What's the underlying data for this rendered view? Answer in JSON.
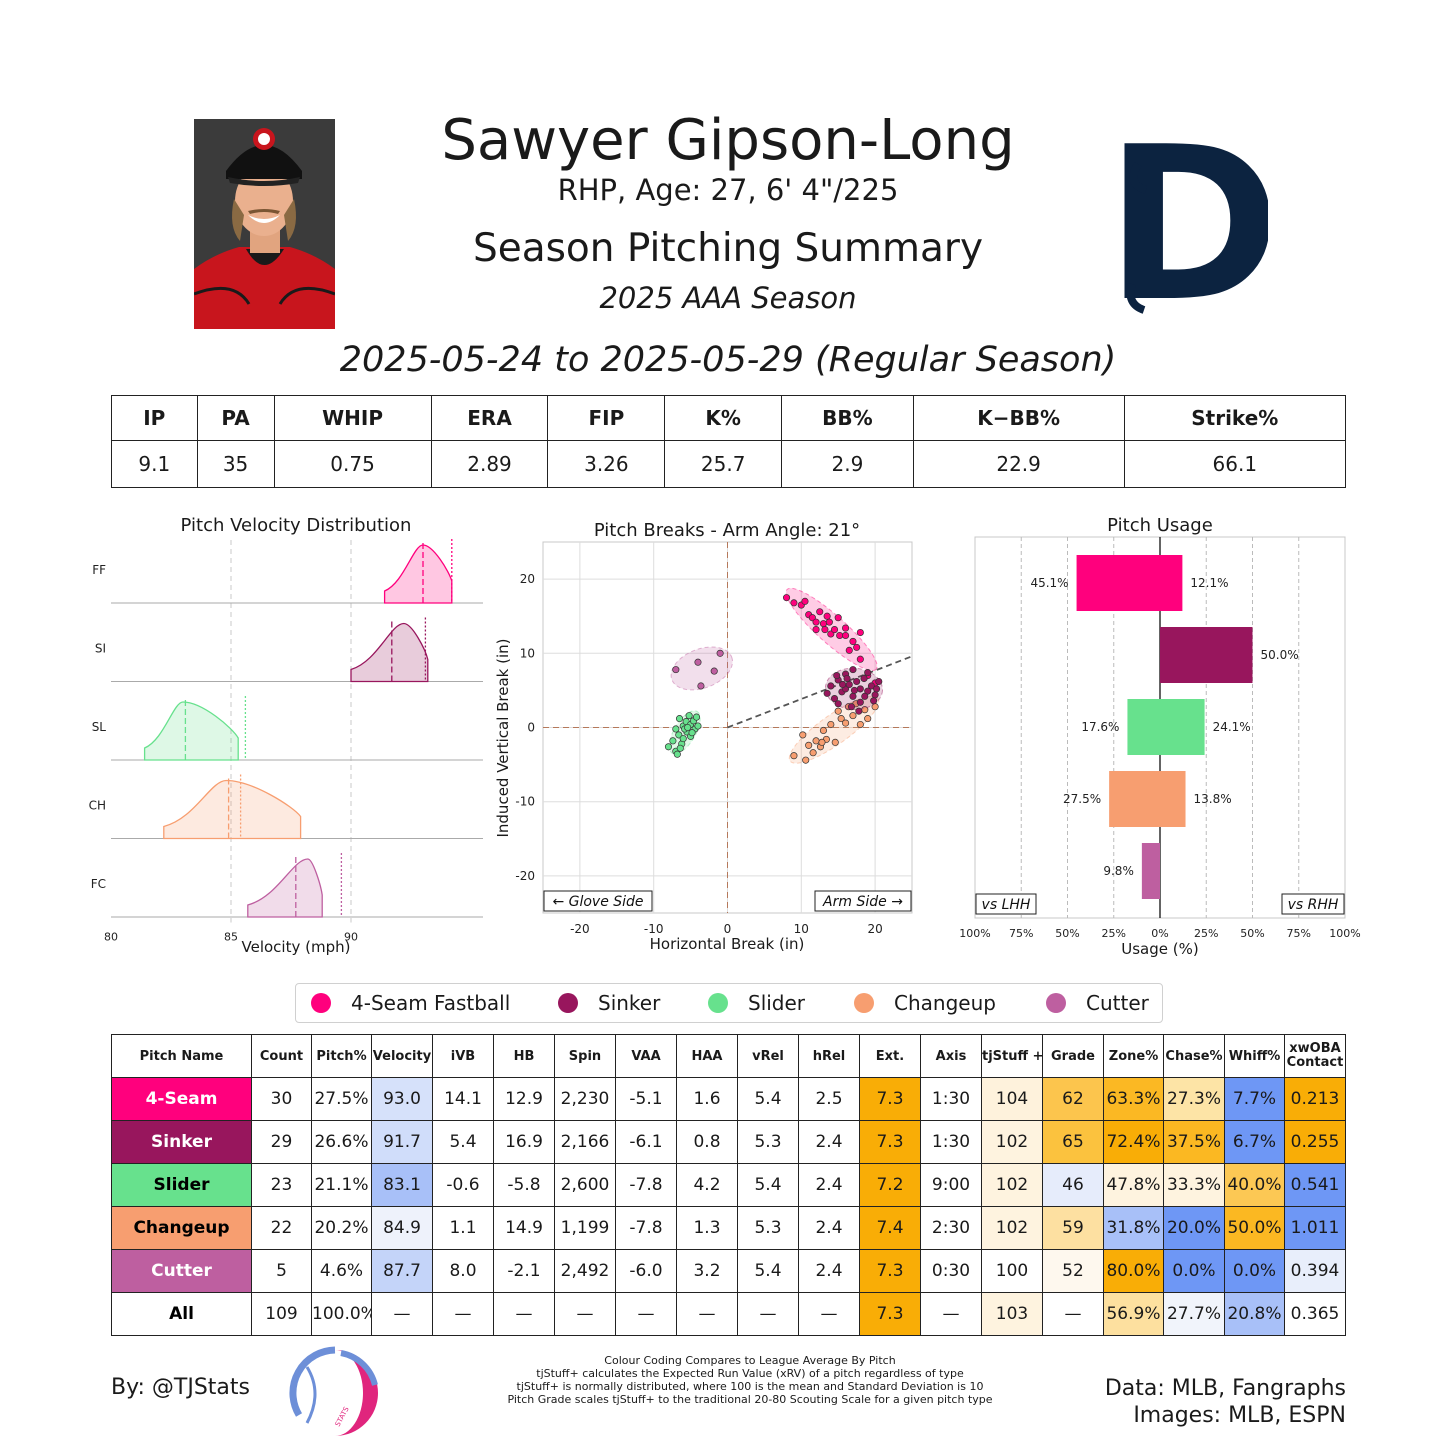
{
  "header": {
    "player_name": "Sawyer Gipson-Long",
    "bio": "RHP, Age: 27, 6' 4\"/225",
    "summary_title": "Season Pitching Summary",
    "season": "2025 AAA Season",
    "date_range": "2025-05-24 to 2025-05-29 (Regular Season)"
  },
  "season_stats": {
    "headers": [
      "IP",
      "PA",
      "WHIP",
      "ERA",
      "FIP",
      "K%",
      "BB%",
      "K−BB%",
      "Strike%"
    ],
    "values": [
      "9.1",
      "35",
      "0.75",
      "2.89",
      "3.26",
      "25.7",
      "2.9",
      "22.9",
      "66.1"
    ]
  },
  "pitch_types": [
    {
      "code": "FF",
      "name": "4-Seam Fastball",
      "color": "#FF007D"
    },
    {
      "code": "SI",
      "name": "Sinker",
      "color": "#98165D"
    },
    {
      "code": "SL",
      "name": "Slider",
      "color": "#67E18D"
    },
    {
      "code": "CH",
      "name": "Changeup",
      "color": "#F79E70"
    },
    {
      "code": "FC",
      "name": "Cutter",
      "color": "#BE5FA0"
    }
  ],
  "chart_data": [
    {
      "type": "area",
      "title": "Pitch Velocity Distribution",
      "xlabel": "Velocity (mph)",
      "xlim": [
        80,
        95.5
      ],
      "xticks": [
        80,
        85,
        90
      ],
      "gridlines": [
        85,
        90
      ],
      "series": [
        {
          "code": "FF",
          "min": 91.4,
          "max": 94.2,
          "peak": 93.0,
          "mean": 93.0,
          "league_avg": 94.2
        },
        {
          "code": "SI",
          "min": 90.0,
          "max": 93.2,
          "peak": 92.2,
          "mean": 91.7,
          "league_avg": 93.1
        },
        {
          "code": "SL",
          "min": 81.4,
          "max": 85.3,
          "peak": 83.0,
          "mean": 83.1,
          "league_avg": 85.6
        },
        {
          "code": "CH",
          "min": 82.2,
          "max": 87.9,
          "peak": 84.8,
          "mean": 84.9,
          "league_avg": 85.4
        },
        {
          "code": "FC",
          "min": 85.7,
          "max": 88.8,
          "peak": 88.2,
          "mean": 87.7,
          "league_avg": 89.6
        }
      ]
    },
    {
      "type": "scatter",
      "title": "Pitch Breaks - Arm Angle: 21°",
      "xlabel": "Horizontal Break (in)",
      "ylabel": "Induced Vertical Break (in)",
      "xlim": [
        -25,
        25
      ],
      "ylim": [
        -25,
        25
      ],
      "xticks": [
        -20,
        -10,
        0,
        10,
        20
      ],
      "yticks": [
        20,
        10,
        0,
        -10,
        -20
      ],
      "arm_angle_deg": 21,
      "glove_side_label": "← Glove Side",
      "arm_side_label": "Arm Side →",
      "points": {
        "FF": [
          [
            8,
            17.5
          ],
          [
            9,
            16.8
          ],
          [
            10,
            16.5
          ],
          [
            11,
            15.2
          ],
          [
            11.5,
            14.8
          ],
          [
            12,
            14.2
          ],
          [
            12.5,
            15.6
          ],
          [
            13,
            14
          ],
          [
            13.2,
            13.2
          ],
          [
            13.8,
            14.2
          ],
          [
            14,
            12.6
          ],
          [
            14.5,
            13.2
          ],
          [
            15,
            14.8
          ],
          [
            15.2,
            12.4
          ],
          [
            16,
            13.4
          ],
          [
            16,
            12.4
          ],
          [
            17,
            11.6
          ],
          [
            18,
            12.8
          ],
          [
            12,
            13.2
          ],
          [
            16.5,
            10.4
          ],
          [
            18,
            9.2
          ],
          [
            19,
            7
          ],
          [
            20,
            6
          ],
          [
            13.5,
            15
          ],
          [
            17.5,
            10.8
          ],
          [
            10.5,
            17
          ]
        ],
        "SI": [
          [
            13.5,
            4.6
          ],
          [
            14,
            5.6
          ],
          [
            14.5,
            3.9
          ],
          [
            15,
            6.4
          ],
          [
            15.5,
            4.8
          ],
          [
            16,
            7.2
          ],
          [
            16,
            5.2
          ],
          [
            16.5,
            5.8
          ],
          [
            17,
            4.2
          ],
          [
            17,
            7.8
          ],
          [
            17.5,
            6.2
          ],
          [
            18,
            5.2
          ],
          [
            18,
            3.4
          ],
          [
            18.5,
            6.6
          ],
          [
            19,
            4.9
          ],
          [
            19,
            7.4
          ],
          [
            19.5,
            5.6
          ],
          [
            20,
            4.4
          ],
          [
            20.5,
            6.2
          ],
          [
            15,
            3.2
          ],
          [
            16.8,
            2.8
          ],
          [
            19.8,
            3.6
          ],
          [
            14.8,
            7
          ],
          [
            17.8,
            2.2
          ],
          [
            20.2,
            5.2
          ],
          [
            16.2,
            6.6
          ],
          [
            18.6,
            4.2
          ],
          [
            15.6,
            5.8
          ],
          [
            17.2,
            5
          ]
        ],
        "SL": [
          [
            -8,
            -2.6
          ],
          [
            -7.4,
            -1.8
          ],
          [
            -7,
            -3.2
          ],
          [
            -7,
            -0.2
          ],
          [
            -6.6,
            -1
          ],
          [
            -6.5,
            1.2
          ],
          [
            -6.2,
            -2.2
          ],
          [
            -6,
            0.2
          ],
          [
            -6,
            -1.5
          ],
          [
            -5.6,
            0.8
          ],
          [
            -5.5,
            -0.6
          ],
          [
            -5.2,
            1.6
          ],
          [
            -5,
            0.4
          ],
          [
            -5,
            -1.2
          ],
          [
            -4.6,
            0.9
          ],
          [
            -4.4,
            -0.2
          ],
          [
            -4.2,
            1.4
          ],
          [
            -4,
            0.2
          ],
          [
            -6.8,
            -3.6
          ],
          [
            -5.8,
            -0.2
          ],
          [
            -4.8,
            -0.7
          ],
          [
            -6.4,
            -2.8
          ],
          [
            -5.4,
            0
          ]
        ],
        "CH": [
          [
            9,
            -3.8
          ],
          [
            10.2,
            -1
          ],
          [
            10.6,
            -4.4
          ],
          [
            11,
            -2.4
          ],
          [
            11.6,
            -3.4
          ],
          [
            12,
            -1.8
          ],
          [
            12.6,
            -2.6
          ],
          [
            13,
            -0.4
          ],
          [
            13.4,
            -1.6
          ],
          [
            14,
            0.4
          ],
          [
            14.6,
            -2
          ],
          [
            15,
            2.2
          ],
          [
            15.4,
            1.2
          ],
          [
            16,
            0.6
          ],
          [
            16.4,
            2.8
          ],
          [
            17,
            1.6
          ],
          [
            17.4,
            3.2
          ],
          [
            18,
            0.4
          ],
          [
            18.6,
            2.4
          ],
          [
            19,
            1.2
          ],
          [
            20,
            2.8
          ],
          [
            12.8,
            -2
          ]
        ],
        "FC": [
          [
            -7,
            7.8
          ],
          [
            -4,
            8.8
          ],
          [
            -1,
            10
          ],
          [
            -3.6,
            5.6
          ],
          [
            -1.8,
            7.6
          ]
        ]
      }
    },
    {
      "type": "bar",
      "title": "Pitch Usage",
      "xlabel": "Usage (%)",
      "xticks": [
        "100%",
        "75%",
        "50%",
        "25%",
        "0%",
        "25%",
        "50%",
        "75%",
        "100%"
      ],
      "left_label": "vs LHH",
      "right_label": "vs RHH",
      "series": [
        {
          "code": "FF",
          "vs_lhh": 45.1,
          "vs_rhh": 12.1
        },
        {
          "code": "SI",
          "vs_lhh": 0,
          "vs_rhh": 50.0
        },
        {
          "code": "SL",
          "vs_lhh": 17.6,
          "vs_rhh": 24.1
        },
        {
          "code": "CH",
          "vs_lhh": 27.5,
          "vs_rhh": 13.8
        },
        {
          "code": "FC",
          "vs_lhh": 9.8,
          "vs_rhh": 0
        }
      ],
      "labels": {
        "FF": {
          "lhh": "45.1%",
          "rhh": "12.1%"
        },
        "SI": {
          "lhh": "",
          "rhh": "50.0%"
        },
        "SL": {
          "lhh": "17.6%",
          "rhh": "24.1%"
        },
        "CH": {
          "lhh": "27.5%",
          "rhh": "13.8%"
        },
        "FC": {
          "lhh": "9.8%",
          "rhh": ""
        }
      }
    },
    {
      "type": "table",
      "title": "Pitch Metrics",
      "columns": [
        "Pitch Name",
        "Count",
        "Pitch%",
        "Velocity",
        "iVB",
        "HB",
        "Spin",
        "VAA",
        "HAA",
        "vRel",
        "hRel",
        "Ext.",
        "Axis",
        "tjStuff +",
        "Grade",
        "Zone%",
        "Chase%",
        "Whiff%",
        "xwOBA Contact"
      ],
      "rows": [
        {
          "name": "4-Seam",
          "bg": "#FF007D",
          "fg": "#ffffff",
          "cells": [
            "30",
            "27.5%",
            "93.0",
            "14.1",
            "12.9",
            "2,230",
            "-5.1",
            "1.6",
            "5.4",
            "2.5",
            "7.3",
            "1:30",
            "104",
            "62",
            "63.3%",
            "27.3%",
            "7.7%",
            "0.213"
          ],
          "colors": [
            "#ffffff",
            "#ffffff",
            "#d6e1fa",
            "#ffffff",
            "#ffffff",
            "#ffffff",
            "#ffffff",
            "#ffffff",
            "#ffffff",
            "#ffffff",
            "#f9ad06",
            "#ffffff",
            "#fef2dc",
            "#fcc54d",
            "#fbb823",
            "#fde4a6",
            "#6e97f5",
            "#f9ad06"
          ]
        },
        {
          "name": "Sinker",
          "bg": "#98165D",
          "fg": "#ffffff",
          "cells": [
            "29",
            "26.6%",
            "91.7",
            "5.4",
            "16.9",
            "2,166",
            "-6.1",
            "0.8",
            "5.3",
            "2.4",
            "7.3",
            "1:30",
            "102",
            "65",
            "72.4%",
            "37.5%",
            "6.7%",
            "0.255"
          ],
          "colors": [
            "#ffffff",
            "#ffffff",
            "#d0ddfa",
            "#ffffff",
            "#ffffff",
            "#ffffff",
            "#ffffff",
            "#ffffff",
            "#ffffff",
            "#ffffff",
            "#f9ad06",
            "#ffffff",
            "#fef3df",
            "#fbc23e",
            "#f9ad06",
            "#fbb822",
            "#6e97f5",
            "#f9ad06"
          ]
        },
        {
          "name": "Slider",
          "bg": "#67E18D",
          "fg": "#000000",
          "cells": [
            "23",
            "21.1%",
            "83.1",
            "-0.6",
            "-5.8",
            "2,600",
            "-7.8",
            "4.2",
            "5.4",
            "2.4",
            "7.2",
            "9:00",
            "102",
            "46",
            "47.8%",
            "33.3%",
            "40.0%",
            "0.541"
          ],
          "colors": [
            "#ffffff",
            "#ffffff",
            "#a8c0f8",
            "#ffffff",
            "#ffffff",
            "#ffffff",
            "#ffffff",
            "#ffffff",
            "#ffffff",
            "#ffffff",
            "#f9ad06",
            "#ffffff",
            "#fef3df",
            "#e6ecfb",
            "#fef3df",
            "#fef3df",
            "#fcc854",
            "#6e97f5"
          ]
        },
        {
          "name": "Changeup",
          "bg": "#F79E70",
          "fg": "#000000",
          "cells": [
            "22",
            "20.2%",
            "84.9",
            "1.1",
            "14.9",
            "1,199",
            "-7.8",
            "1.3",
            "5.3",
            "2.4",
            "7.4",
            "2:30",
            "102",
            "59",
            "31.8%",
            "20.0%",
            "50.0%",
            "1.011"
          ],
          "colors": [
            "#ffffff",
            "#ffffff",
            "#eef2fb",
            "#ffffff",
            "#ffffff",
            "#ffffff",
            "#ffffff",
            "#ffffff",
            "#ffffff",
            "#ffffff",
            "#f9ad06",
            "#ffffff",
            "#fef3df",
            "#fde0a1",
            "#a8c0f8",
            "#6e97f5",
            "#fbb822",
            "#6e97f5"
          ]
        },
        {
          "name": "Cutter",
          "bg": "#BE5FA0",
          "fg": "#ffffff",
          "cells": [
            "5",
            "4.6%",
            "87.7",
            "8.0",
            "-2.1",
            "2,492",
            "-6.0",
            "3.2",
            "5.4",
            "2.4",
            "7.3",
            "0:30",
            "100",
            "52",
            "80.0%",
            "0.0%",
            "0.0%",
            "0.394"
          ],
          "colors": [
            "#ffffff",
            "#ffffff",
            "#c4d4f9",
            "#ffffff",
            "#ffffff",
            "#ffffff",
            "#ffffff",
            "#ffffff",
            "#ffffff",
            "#ffffff",
            "#f9ad06",
            "#ffffff",
            "#ffffff",
            "#fef8ee",
            "#f9ad06",
            "#6e97f5",
            "#6e97f5",
            "#e8eefb"
          ]
        },
        {
          "name": "All",
          "bg": "#ffffff",
          "fg": "#000000",
          "cells": [
            "109",
            "100.0%",
            "—",
            "—",
            "—",
            "—",
            "—",
            "—",
            "—",
            "—",
            "7.3",
            "—",
            "103",
            "—",
            "56.9%",
            "27.7%",
            "20.8%",
            "0.365"
          ],
          "colors": [
            "#ffffff",
            "#ffffff",
            "#ffffff",
            "#ffffff",
            "#ffffff",
            "#ffffff",
            "#ffffff",
            "#ffffff",
            "#ffffff",
            "#ffffff",
            "#f9ad06",
            "#ffffff",
            "#fef3df",
            "#ffffff",
            "#fde09f",
            "#f1f4fb",
            "#a8c0f8",
            "#ffffff"
          ]
        }
      ]
    }
  ],
  "footer": {
    "by": "By: @TJStats",
    "notes": [
      "Colour Coding Compares to League Average By Pitch",
      "tjStuff+ calculates the Expected Run Value (xRV) of a pitch regardless of type",
      "tjStuff+ is normally distributed, where 100 is the mean and Standard Deviation is 10",
      "Pitch Grade scales tjStuff+ to the traditional 20-80 Scouting Scale for a given pitch type"
    ],
    "data_source": "Data: MLB, Fangraphs",
    "images_source": "Images: MLB, ESPN",
    "ball_logo_text": "STATS"
  }
}
